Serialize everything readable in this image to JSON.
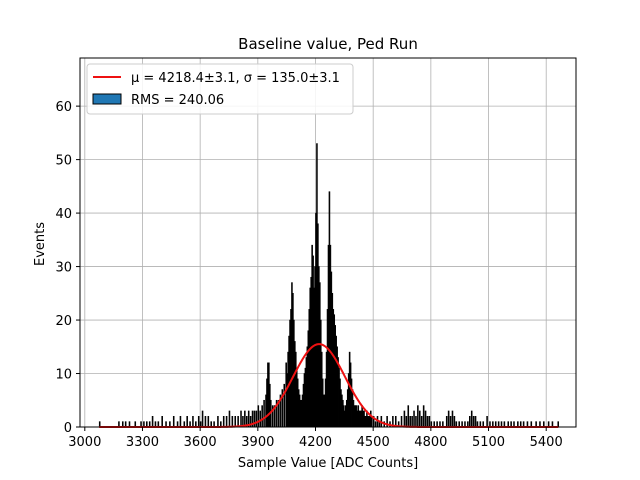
{
  "chart_data": {
    "type": "histogram",
    "title": "Baseline value, Ped Run",
    "xlabel": "Sample Value [ADC Counts]",
    "ylabel": "Events",
    "xlim": [
      2975,
      5555
    ],
    "ylim": [
      0,
      69
    ],
    "x_ticks": [
      3000,
      3300,
      3600,
      3900,
      4200,
      4500,
      4800,
      5100,
      5400
    ],
    "y_ticks": [
      0,
      10,
      20,
      30,
      40,
      50,
      60
    ],
    "grid": true,
    "legend_position": "top-left",
    "legend": [
      {
        "key": "fit",
        "label": "μ = 4218.4±3.1, σ = 135.0±3.1",
        "color": "#ee1111"
      },
      {
        "key": "hist",
        "label": "RMS = 240.06",
        "color": "#1f77b4"
      }
    ],
    "histogram": {
      "bin_width": 5,
      "edge_color": "#000000",
      "fill_color": "#000000",
      "bins": [
        [
          3075,
          1
        ],
        [
          3175,
          1
        ],
        [
          3195,
          1
        ],
        [
          3210,
          1
        ],
        [
          3230,
          1
        ],
        [
          3260,
          1
        ],
        [
          3290,
          1
        ],
        [
          3305,
          1
        ],
        [
          3320,
          1
        ],
        [
          3335,
          1
        ],
        [
          3350,
          2
        ],
        [
          3365,
          1
        ],
        [
          3380,
          1
        ],
        [
          3400,
          2
        ],
        [
          3420,
          1
        ],
        [
          3440,
          1
        ],
        [
          3460,
          2
        ],
        [
          3480,
          1
        ],
        [
          3495,
          2
        ],
        [
          3515,
          1
        ],
        [
          3530,
          2
        ],
        [
          3545,
          1
        ],
        [
          3560,
          2
        ],
        [
          3575,
          1
        ],
        [
          3590,
          2
        ],
        [
          3600,
          1
        ],
        [
          3610,
          3
        ],
        [
          3625,
          2
        ],
        [
          3640,
          2
        ],
        [
          3655,
          1
        ],
        [
          3670,
          1
        ],
        [
          3690,
          2
        ],
        [
          3705,
          1
        ],
        [
          3720,
          2
        ],
        [
          3735,
          2
        ],
        [
          3750,
          3
        ],
        [
          3765,
          2
        ],
        [
          3780,
          2
        ],
        [
          3795,
          2
        ],
        [
          3810,
          3
        ],
        [
          3820,
          2
        ],
        [
          3830,
          3
        ],
        [
          3840,
          2
        ],
        [
          3850,
          3
        ],
        [
          3860,
          2
        ],
        [
          3870,
          3
        ],
        [
          3880,
          3
        ],
        [
          3890,
          3
        ],
        [
          3900,
          4
        ],
        [
          3910,
          3
        ],
        [
          3920,
          4
        ],
        [
          3930,
          5
        ],
        [
          3940,
          6
        ],
        [
          3945,
          9
        ],
        [
          3950,
          12
        ],
        [
          3955,
          12
        ],
        [
          3960,
          8
        ],
        [
          3965,
          5
        ],
        [
          3975,
          4
        ],
        [
          3985,
          4
        ],
        [
          3995,
          5
        ],
        [
          4005,
          5
        ],
        [
          4015,
          6
        ],
        [
          4025,
          7
        ],
        [
          4035,
          8
        ],
        [
          4045,
          12
        ],
        [
          4050,
          10
        ],
        [
          4055,
          14
        ],
        [
          4060,
          17
        ],
        [
          4065,
          20
        ],
        [
          4070,
          22
        ],
        [
          4075,
          27
        ],
        [
          4080,
          25
        ],
        [
          4085,
          20
        ],
        [
          4090,
          16
        ],
        [
          4095,
          14
        ],
        [
          4100,
          11
        ],
        [
          4105,
          9
        ],
        [
          4110,
          7
        ],
        [
          4115,
          6
        ],
        [
          4120,
          5
        ],
        [
          4125,
          5
        ],
        [
          4130,
          6
        ],
        [
          4135,
          8
        ],
        [
          4140,
          10
        ],
        [
          4145,
          11
        ],
        [
          4150,
          13
        ],
        [
          4155,
          15
        ],
        [
          4160,
          18
        ],
        [
          4165,
          22
        ],
        [
          4170,
          26
        ],
        [
          4175,
          28
        ],
        [
          4180,
          34
        ],
        [
          4185,
          32
        ],
        [
          4190,
          26
        ],
        [
          4195,
          30
        ],
        [
          4200,
          40
        ],
        [
          4205,
          53
        ],
        [
          4210,
          38
        ],
        [
          4215,
          30
        ],
        [
          4220,
          27
        ],
        [
          4225,
          20
        ],
        [
          4230,
          14
        ],
        [
          4235,
          9
        ],
        [
          4240,
          6
        ],
        [
          4245,
          6
        ],
        [
          4250,
          9
        ],
        [
          4255,
          14
        ],
        [
          4260,
          22
        ],
        [
          4265,
          34
        ],
        [
          4270,
          44
        ],
        [
          4275,
          34
        ],
        [
          4280,
          29
        ],
        [
          4285,
          25
        ],
        [
          4290,
          22
        ],
        [
          4295,
          21
        ],
        [
          4300,
          19
        ],
        [
          4305,
          17
        ],
        [
          4310,
          15
        ],
        [
          4315,
          13
        ],
        [
          4320,
          11
        ],
        [
          4325,
          9
        ],
        [
          4330,
          7
        ],
        [
          4335,
          6
        ],
        [
          4340,
          5
        ],
        [
          4345,
          4
        ],
        [
          4350,
          3
        ],
        [
          4355,
          4
        ],
        [
          4360,
          5
        ],
        [
          4365,
          7
        ],
        [
          4370,
          10
        ],
        [
          4375,
          14
        ],
        [
          4380,
          12
        ],
        [
          4385,
          9
        ],
        [
          4390,
          7
        ],
        [
          4395,
          5
        ],
        [
          4400,
          4
        ],
        [
          4405,
          4
        ],
        [
          4410,
          4
        ],
        [
          4415,
          3
        ],
        [
          4420,
          4
        ],
        [
          4425,
          3
        ],
        [
          4430,
          3
        ],
        [
          4435,
          3
        ],
        [
          4440,
          4
        ],
        [
          4445,
          3
        ],
        [
          4450,
          3
        ],
        [
          4455,
          2
        ],
        [
          4460,
          2
        ],
        [
          4465,
          3
        ],
        [
          4470,
          2
        ],
        [
          4475,
          2
        ],
        [
          4480,
          2
        ],
        [
          4485,
          3
        ],
        [
          4490,
          2
        ],
        [
          4500,
          2
        ],
        [
          4510,
          1
        ],
        [
          4520,
          2
        ],
        [
          4530,
          1
        ],
        [
          4540,
          2
        ],
        [
          4555,
          1
        ],
        [
          4570,
          2
        ],
        [
          4585,
          1
        ],
        [
          4600,
          2
        ],
        [
          4615,
          2
        ],
        [
          4630,
          1
        ],
        [
          4645,
          2
        ],
        [
          4660,
          3
        ],
        [
          4670,
          2
        ],
        [
          4680,
          4
        ],
        [
          4690,
          2
        ],
        [
          4700,
          2
        ],
        [
          4710,
          3
        ],
        [
          4720,
          2
        ],
        [
          4730,
          4
        ],
        [
          4740,
          3
        ],
        [
          4750,
          2
        ],
        [
          4760,
          4
        ],
        [
          4770,
          3
        ],
        [
          4780,
          2
        ],
        [
          4790,
          2
        ],
        [
          4800,
          1
        ],
        [
          4815,
          1
        ],
        [
          4830,
          1
        ],
        [
          4845,
          1
        ],
        [
          4860,
          1
        ],
        [
          4880,
          2
        ],
        [
          4890,
          3
        ],
        [
          4900,
          2
        ],
        [
          4910,
          3
        ],
        [
          4920,
          2
        ],
        [
          4930,
          1
        ],
        [
          4945,
          1
        ],
        [
          4960,
          1
        ],
        [
          4975,
          1
        ],
        [
          4990,
          1
        ],
        [
          5000,
          2
        ],
        [
          5010,
          3
        ],
        [
          5020,
          2
        ],
        [
          5030,
          2
        ],
        [
          5040,
          1
        ],
        [
          5055,
          1
        ],
        [
          5070,
          1
        ],
        [
          5090,
          2
        ],
        [
          5105,
          1
        ],
        [
          5120,
          1
        ],
        [
          5135,
          1
        ],
        [
          5150,
          1
        ],
        [
          5165,
          1
        ],
        [
          5180,
          1
        ],
        [
          5200,
          1
        ],
        [
          5215,
          1
        ],
        [
          5230,
          1
        ],
        [
          5250,
          1
        ],
        [
          5265,
          1
        ],
        [
          5280,
          1
        ],
        [
          5300,
          1
        ],
        [
          5320,
          1
        ],
        [
          5345,
          1
        ],
        [
          5365,
          1
        ],
        [
          5385,
          1
        ],
        [
          5410,
          1
        ],
        [
          5430,
          1
        ],
        [
          5460,
          1
        ]
      ]
    },
    "fit": {
      "type": "gaussian",
      "mu": 4218.4,
      "sigma": 135.0,
      "amplitude": 15.5,
      "color": "#ee1111"
    }
  }
}
